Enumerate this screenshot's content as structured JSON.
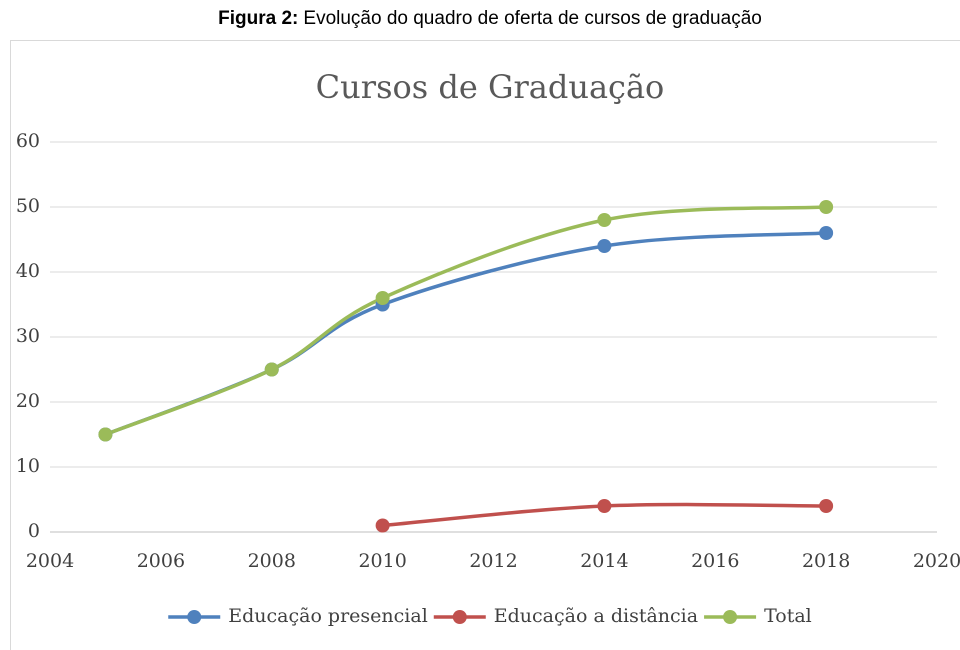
{
  "caption": {
    "label": "Figura 2:",
    "text": "Evolução do quadro de oferta de cursos de graduação"
  },
  "chart_data": {
    "type": "line",
    "title": "Cursos de Graduação",
    "x": [
      2005,
      2008,
      2010,
      2014,
      2018
    ],
    "series": [
      {
        "name": "Educação presencial",
        "color": "#4f81bd",
        "values": [
          15,
          25,
          35,
          44,
          46
        ]
      },
      {
        "name": "Educação a distância",
        "color": "#c0504d",
        "values": [
          null,
          null,
          1,
          4,
          4
        ]
      },
      {
        "name": "Total",
        "color": "#9bbb59",
        "values": [
          15,
          25,
          36,
          48,
          50
        ]
      }
    ],
    "xlim": [
      2004,
      2020
    ],
    "xticks": [
      2004,
      2006,
      2008,
      2010,
      2012,
      2014,
      2016,
      2018,
      2020
    ],
    "ylim": [
      0,
      60
    ],
    "yticks": [
      0,
      10,
      20,
      30,
      40,
      50,
      60
    ],
    "grid": true,
    "smooth": true,
    "legend": "bottom"
  }
}
